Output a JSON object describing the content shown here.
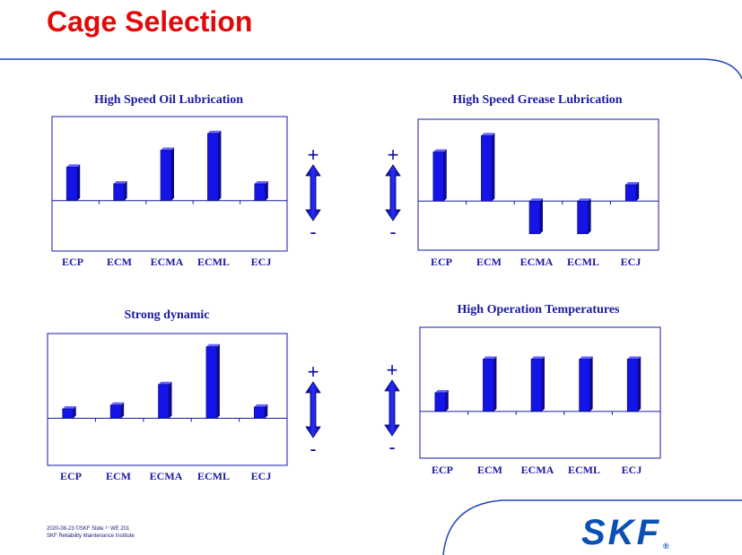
{
  "slide": {
    "title": "Cage Selection"
  },
  "footer": {
    "line1": "2020-08-23 ©SKF Slide ¹⁷ WE 201",
    "line2": "SKF Reliability Maintenance Institute"
  },
  "logo": {
    "text": "SKF",
    "reg": "®"
  },
  "indicator": {
    "plus": "+",
    "minus": "-"
  },
  "colors": {
    "title": "#e10a0a",
    "bar": "#1414e6",
    "axis": "#1a1aa0",
    "logo": "#0a50b4"
  },
  "chart_data": [
    {
      "type": "bar",
      "title": "High Speed Oil Lubrication",
      "categories": [
        "ECP",
        "ECM",
        "ECMA",
        "ECML",
        "ECJ"
      ],
      "values": [
        2,
        1,
        3,
        4,
        1
      ],
      "ylim": [
        -3,
        5
      ]
    },
    {
      "type": "bar",
      "title": "High Speed Grease Lubrication",
      "categories": [
        "ECP",
        "ECM",
        "ECMA",
        "ECML",
        "ECJ"
      ],
      "values": [
        3,
        4,
        -2,
        -2,
        1
      ],
      "ylim": [
        -3,
        5
      ]
    },
    {
      "type": "bar",
      "title": "Strong dynamic",
      "categories": [
        "ECP",
        "ECM",
        "ECMA",
        "ECML",
        "ECJ"
      ],
      "values": [
        0.5,
        0.7,
        1.8,
        3.8,
        0.6
      ],
      "ylim": [
        -2.5,
        4.5
      ]
    },
    {
      "type": "bar",
      "title": "High Operation Temperatures",
      "categories": [
        "ECP",
        "ECM",
        "ECMA",
        "ECML",
        "ECJ"
      ],
      "values": [
        1,
        2.8,
        2.8,
        2.8,
        2.8
      ],
      "ylim": [
        -2.5,
        4.5
      ]
    }
  ]
}
